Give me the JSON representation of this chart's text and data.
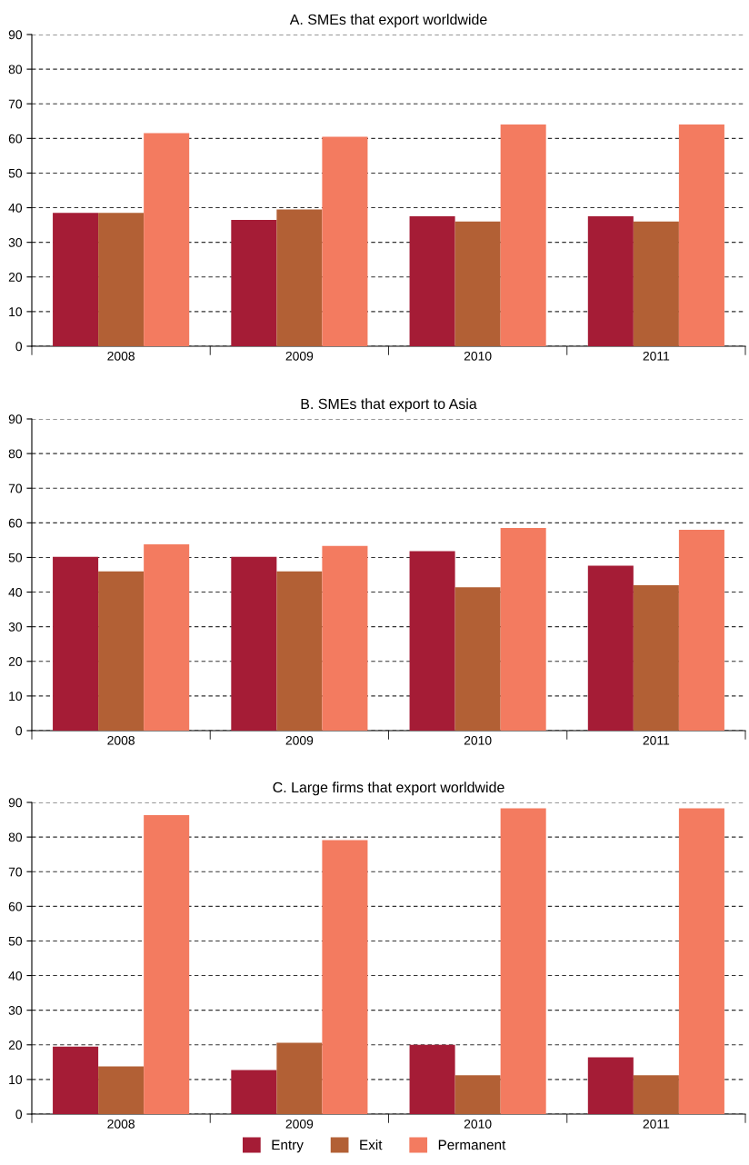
{
  "chart_data": [
    {
      "type": "bar",
      "title": "A. SMEs that export worldwide",
      "categories": [
        "2008",
        "2009",
        "2010",
        "2011"
      ],
      "ylim": [
        0,
        90
      ],
      "yticks": [
        0,
        10,
        20,
        30,
        40,
        50,
        60,
        70,
        80,
        90
      ],
      "grid": "y",
      "series": [
        {
          "color": "#a51c36",
          "values": [
            38.5,
            36.5,
            37.5,
            37.5
          ]
        },
        {
          "color": "#b26035",
          "values": [
            38.5,
            39.5,
            36,
            36
          ]
        },
        {
          "color": "#f37b60",
          "values": [
            61.5,
            60.5,
            64,
            64
          ]
        }
      ]
    },
    {
      "type": "bar",
      "title": "B. SMEs that export to Asia",
      "categories": [
        "2008",
        "2009",
        "2010",
        "2011"
      ],
      "ylim": [
        0,
        90
      ],
      "yticks": [
        0,
        10,
        20,
        30,
        40,
        50,
        60,
        70,
        80,
        90
      ],
      "grid": "y",
      "series": [
        {
          "color": "#a51c36",
          "values": [
            50.2,
            50.2,
            51.8,
            47.6
          ]
        },
        {
          "color": "#b26035",
          "values": [
            46,
            46,
            41.4,
            42
          ]
        },
        {
          "color": "#f37b60",
          "values": [
            53.8,
            53.3,
            58.5,
            58
          ]
        }
      ]
    },
    {
      "type": "bar",
      "title": "C. Large firms that export worldwide",
      "categories": [
        "2008",
        "2009",
        "2010",
        "2011"
      ],
      "ylim": [
        0,
        90
      ],
      "yticks": [
        0,
        10,
        20,
        30,
        40,
        50,
        60,
        70,
        80,
        90
      ],
      "grid": "y",
      "legend": "bottom",
      "series": [
        {
          "name": "Entry",
          "color": "#a51c36",
          "values": [
            19.5,
            12.7,
            20,
            16.4
          ]
        },
        {
          "name": "Exit",
          "color": "#b26035",
          "values": [
            13.8,
            20.6,
            11.2,
            11.2
          ]
        },
        {
          "name": "Permanent",
          "color": "#f37b60",
          "values": [
            86.3,
            79.1,
            88.3,
            88.3
          ]
        }
      ]
    }
  ]
}
